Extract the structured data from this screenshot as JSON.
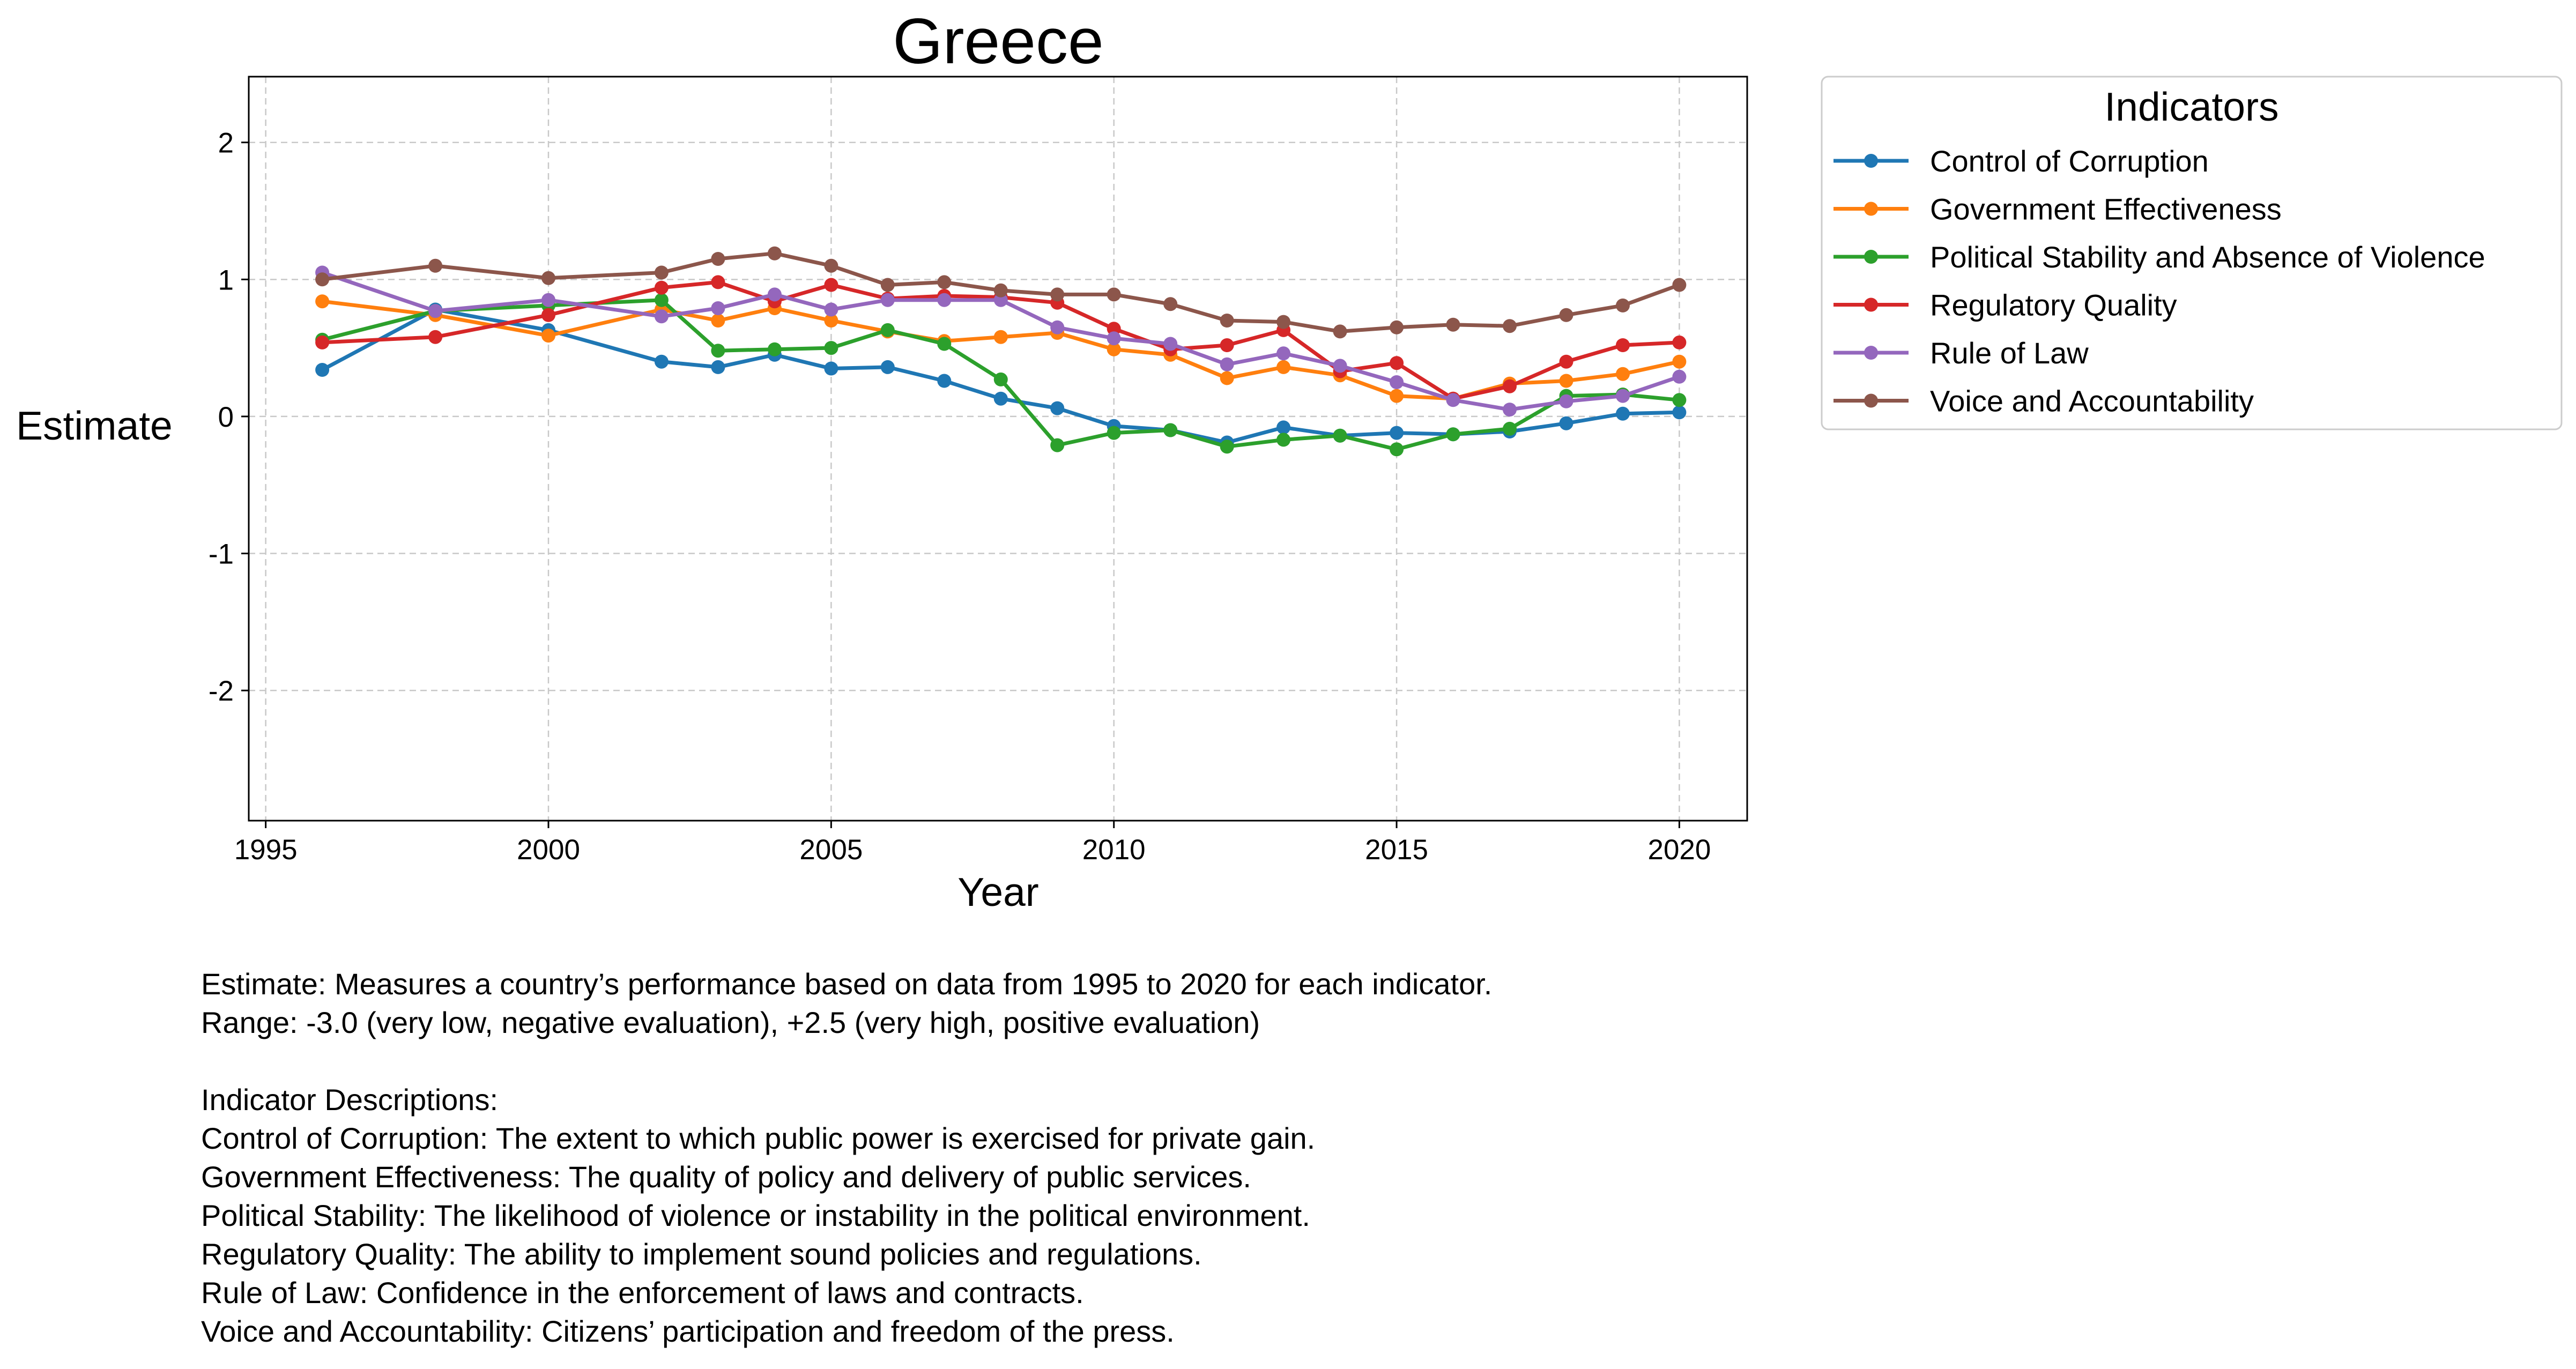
{
  "chart_data": {
    "type": "line",
    "title": "Greece",
    "xlabel": "Year",
    "ylabel": "Estimate",
    "xlim": [
      1994.7,
      2021.2
    ],
    "ylim": [
      -2.95,
      2.48
    ],
    "xticks": [
      1995,
      2000,
      2005,
      2010,
      2015,
      2020
    ],
    "yticks": [
      -2,
      -1,
      0,
      1,
      2
    ],
    "grid": true,
    "legend": {
      "title": "Indicators",
      "placement": "outside-top-right"
    },
    "x": [
      1996,
      1998,
      2000,
      2002,
      2003,
      2004,
      2005,
      2006,
      2007,
      2008,
      2009,
      2010,
      2011,
      2012,
      2013,
      2014,
      2015,
      2016,
      2017,
      2018,
      2019,
      2020
    ],
    "series": [
      {
        "name": "Control of Corruption",
        "color": "#1f77b4",
        "values": [
          0.34,
          0.78,
          0.63,
          0.4,
          0.36,
          0.45,
          0.35,
          0.36,
          0.26,
          0.13,
          0.06,
          -0.07,
          -0.1,
          -0.19,
          -0.08,
          -0.14,
          -0.12,
          -0.13,
          -0.11,
          -0.05,
          0.02,
          0.03
        ]
      },
      {
        "name": "Government Effectiveness",
        "color": "#ff7f0e",
        "values": [
          0.84,
          0.74,
          0.59,
          0.78,
          0.7,
          0.79,
          0.7,
          0.62,
          0.55,
          0.58,
          0.61,
          0.49,
          0.45,
          0.28,
          0.36,
          0.3,
          0.15,
          0.13,
          0.24,
          0.26,
          0.31,
          0.4
        ]
      },
      {
        "name": "Political Stability and Absence of Violence",
        "color": "#2ca02c",
        "values": [
          0.56,
          0.77,
          0.81,
          0.85,
          0.48,
          0.49,
          0.5,
          0.63,
          0.53,
          0.27,
          -0.21,
          -0.12,
          -0.1,
          -0.22,
          -0.17,
          -0.14,
          -0.24,
          -0.13,
          -0.09,
          0.15,
          0.16,
          0.12
        ]
      },
      {
        "name": "Regulatory Quality",
        "color": "#d62728",
        "values": [
          0.54,
          0.58,
          0.74,
          0.94,
          0.98,
          0.84,
          0.96,
          0.86,
          0.88,
          0.87,
          0.83,
          0.64,
          0.49,
          0.52,
          0.63,
          0.33,
          0.39,
          0.13,
          0.22,
          0.4,
          0.52,
          0.54
        ]
      },
      {
        "name": "Rule of Law",
        "color": "#9467bd",
        "values": [
          1.05,
          0.77,
          0.85,
          0.73,
          0.79,
          0.89,
          0.78,
          0.85,
          0.85,
          0.85,
          0.65,
          0.57,
          0.53,
          0.38,
          0.46,
          0.37,
          0.25,
          0.12,
          0.05,
          0.11,
          0.15,
          0.29
        ]
      },
      {
        "name": "Voice and Accountability",
        "color": "#8c564b",
        "values": [
          1.0,
          1.1,
          1.01,
          1.05,
          1.15,
          1.19,
          1.1,
          0.96,
          0.98,
          0.92,
          0.89,
          0.89,
          0.82,
          0.7,
          0.69,
          0.62,
          0.65,
          0.67,
          0.66,
          0.74,
          0.81,
          0.96
        ]
      }
    ]
  },
  "notes": {
    "line1": "Estimate: Measures a country’s performance based on data from 1995 to 2020 for each indicator.",
    "line2": "Range: -3.0 (very low, negative evaluation), +2.5 (very high, positive evaluation)",
    "descriptions_header": "Indicator Descriptions:",
    "descriptions": [
      "Control of Corruption: The extent to which public power is exercised for private gain.",
      "Government Effectiveness: The quality of policy and delivery of public services.",
      "Political Stability: The likelihood of violence or instability in the political environment.",
      "Regulatory Quality: The ability to implement sound policies and regulations.",
      "Rule of Law: Confidence in the enforcement of laws and contracts.",
      "Voice and Accountability: Citizens’ participation and freedom of the press."
    ]
  }
}
